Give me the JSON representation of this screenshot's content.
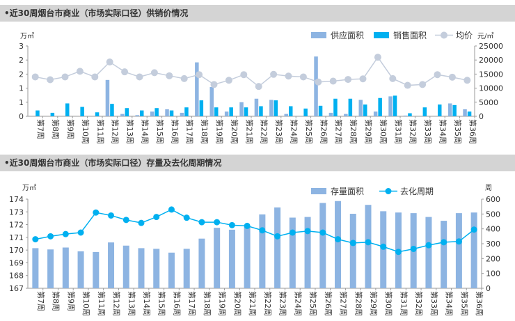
{
  "chart_data": [
    {
      "type": "bar",
      "title": "•近30周烟台市商业（市场实际口径）供销价情况",
      "ylabel_left": "万㎡",
      "ylabel_right": "元/㎡",
      "ylim_left": [
        0,
        3
      ],
      "yticks_left": [
        "0",
        "1",
        "1",
        "2",
        "2",
        "3"
      ],
      "ylim_right": [
        0,
        25000
      ],
      "yticks_right": [
        "0",
        "5000",
        "10000",
        "15000",
        "20000",
        "25000"
      ],
      "legend": "top-right",
      "grid": false,
      "categories": [
        "第7周",
        "第8周",
        "第9周",
        "第10周",
        "第11周",
        "第12周",
        "第13周",
        "第14周",
        "第15周",
        "第16周",
        "第17周",
        "第18周",
        "第19周",
        "第20周",
        "第21周",
        "第22周",
        "第23周",
        "第24周",
        "第25周",
        "第26周",
        "第27周",
        "第28周",
        "第29周",
        "第30周",
        "第31周",
        "第32周",
        "第33周",
        "第34周",
        "第35周",
        "第36周"
      ],
      "series": [
        {
          "name": "供应面积",
          "kind": "bar",
          "axis": "left",
          "color": "#8db4e2",
          "values": [
            0,
            0,
            0,
            0,
            0,
            1.55,
            0.1,
            0.05,
            0.2,
            0.3,
            0.15,
            2.3,
            1.25,
            0.2,
            0.6,
            0.75,
            0.7,
            0.1,
            0,
            2.55,
            0.15,
            0.1,
            0.7,
            0.2,
            0.85,
            0.03,
            0,
            0,
            0.55,
            0.3
          ]
        },
        {
          "name": "销售面积",
          "kind": "bar",
          "axis": "left",
          "color": "#00b0f0",
          "values": [
            0.25,
            0.15,
            0.55,
            0.4,
            0.17,
            0.53,
            0.35,
            0.25,
            0.35,
            0.25,
            0.38,
            0.68,
            0.38,
            0.38,
            0.38,
            0.43,
            0.68,
            0.43,
            0.33,
            0.45,
            0.75,
            0.75,
            0.5,
            0.78,
            0.88,
            0.13,
            0.38,
            0.5,
            0.48,
            0.2
          ]
        },
        {
          "name": "均价",
          "kind": "line",
          "axis": "right",
          "color": "#c4cddc",
          "values": [
            14000,
            13000,
            14000,
            16000,
            14000,
            19300,
            15800,
            14000,
            15500,
            14400,
            13400,
            14800,
            11300,
            12800,
            14800,
            10600,
            14900,
            14300,
            14000,
            12200,
            12500,
            13100,
            13300,
            21000,
            13400,
            11000,
            11300,
            14800,
            13900,
            12800
          ]
        }
      ]
    },
    {
      "type": "bar",
      "title": "•近30周烟台市商业（市场实际口径）存量及去化周期情况",
      "ylabel_left": "万㎡",
      "ylabel_right": "周",
      "ylim_left": [
        167,
        174
      ],
      "yticks_left": [
        "167",
        "168",
        "169",
        "170",
        "171",
        "172",
        "173",
        "174"
      ],
      "ylim_right": [
        0,
        600
      ],
      "yticks_right": [
        "0",
        "100",
        "200",
        "300",
        "400",
        "500",
        "600"
      ],
      "legend": "top-right",
      "grid": false,
      "categories": [
        "第7周",
        "第8周",
        "第9周",
        "第10周",
        "第11周",
        "第12周",
        "第13周",
        "第14周",
        "第15周",
        "第16周",
        "第17周",
        "第18周",
        "第19周",
        "第20周",
        "第21周",
        "第22周",
        "第23周",
        "第24周",
        "第25周",
        "第26周",
        "第27周",
        "第28周",
        "第29周",
        "第30周",
        "第31周",
        "第32周",
        "第33周",
        "第34周",
        "第35周",
        "第36周"
      ],
      "series": [
        {
          "name": "存量面积",
          "kind": "bar",
          "axis": "left",
          "color": "#8db4e2",
          "values": [
            170.15,
            170.05,
            170.2,
            169.9,
            169.85,
            170.6,
            170.35,
            170.15,
            170.1,
            169.8,
            170.1,
            170.9,
            171.75,
            171.6,
            171.85,
            172.8,
            173.35,
            172.55,
            172.6,
            173.7,
            173.85,
            172.85,
            173.55,
            173.05,
            172.95,
            172.9,
            172.6,
            172.3,
            172.9,
            172.95
          ]
        },
        {
          "name": "去化周期",
          "kind": "line",
          "axis": "right",
          "color": "#00b0f0",
          "values": [
            330,
            350,
            365,
            375,
            510,
            490,
            460,
            440,
            480,
            530,
            475,
            445,
            445,
            425,
            420,
            390,
            350,
            375,
            385,
            375,
            330,
            305,
            310,
            280,
            245,
            265,
            290,
            310,
            315,
            395
          ]
        }
      ]
    }
  ]
}
